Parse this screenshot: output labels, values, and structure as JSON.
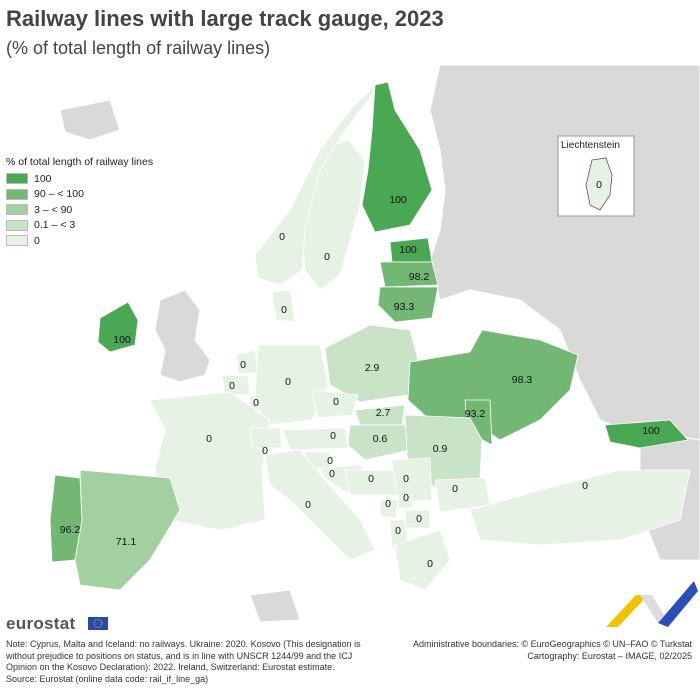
{
  "title": "Railway lines with large track gauge, 2023",
  "subtitle": "(% of total length of railway lines)",
  "legend": {
    "title": "% of total length of railway lines",
    "classes": [
      {
        "label": "100",
        "color": "#4aa855"
      },
      {
        "label": "90 – < 100",
        "color": "#72b874"
      },
      {
        "label": "3 – < 90",
        "color": "#a2d0a0"
      },
      {
        "label": "0.1 – < 3",
        "color": "#c9e3c7"
      },
      {
        "label": "0",
        "color": "#e6f2e4"
      }
    ]
  },
  "colors": {
    "sea": "#ffffff",
    "non_eu": "#d9d9d9",
    "border": "#9a9a9a"
  },
  "inset": {
    "title": "Liechtenstein",
    "value": "0"
  },
  "regions": [
    {
      "name": "Finland",
      "value": "100"
    },
    {
      "name": "Sweden",
      "value": "0"
    },
    {
      "name": "Norway",
      "value": "0"
    },
    {
      "name": "Estonia",
      "value": "100"
    },
    {
      "name": "Latvia",
      "value": "98.2"
    },
    {
      "name": "Lithuania",
      "value": "93.3"
    },
    {
      "name": "Ireland",
      "value": "100"
    },
    {
      "name": "Denmark",
      "value": "0"
    },
    {
      "name": "Poland",
      "value": "2.9"
    },
    {
      "name": "Ukraine",
      "value": "98.3"
    },
    {
      "name": "Moldova",
      "value": "93.2"
    },
    {
      "name": "Georgia",
      "value": "100"
    },
    {
      "name": "Netherlands",
      "value": "0"
    },
    {
      "name": "Belgium",
      "value": "0"
    },
    {
      "name": "Luxembourg",
      "value": "0"
    },
    {
      "name": "Germany",
      "value": "0"
    },
    {
      "name": "Czechia",
      "value": "0"
    },
    {
      "name": "Slovakia",
      "value": "2.7"
    },
    {
      "name": "Hungary",
      "value": "0.6"
    },
    {
      "name": "Romania",
      "value": "0.9"
    },
    {
      "name": "France",
      "value": "0"
    },
    {
      "name": "Switzerland",
      "value": "0"
    },
    {
      "name": "Austria",
      "value": "0"
    },
    {
      "name": "Slovenia",
      "value": "0"
    },
    {
      "name": "Croatia",
      "value": "0"
    },
    {
      "name": "Bosnia and Herzegovina",
      "value": "0"
    },
    {
      "name": "Serbia",
      "value": "0"
    },
    {
      "name": "Montenegro",
      "value": "0"
    },
    {
      "name": "Kosovo",
      "value": "0"
    },
    {
      "name": "North Macedonia",
      "value": "0"
    },
    {
      "name": "Albania",
      "value": "0"
    },
    {
      "name": "Bulgaria",
      "value": "0"
    },
    {
      "name": "Italy",
      "value": "0"
    },
    {
      "name": "Greece",
      "value": "0"
    },
    {
      "name": "Türkiye",
      "value": "0"
    },
    {
      "name": "Portugal",
      "value": "96.2"
    },
    {
      "name": "Spain",
      "value": "71.1"
    }
  ],
  "brand": "eurostat",
  "note": "Note: Cyprus, Malta and Iceland: no railways. Ukraine: 2020. Kosovo (This designation is without prejudice to positions on status, and is in line with UNSCR 1244/99 and the ICJ Opinion on the Kosovo Declaration): 2022. Ireland, Switzerland: Eurostat estimate.",
  "source": "Source: Eurostat (online data code: rail_if_line_ga)",
  "credits": [
    "Administrative boundaries: © EuroGeographics © UN–FAO © Turkstat",
    "Cartography: Eurostat – IMAGE, 02/2025"
  ]
}
